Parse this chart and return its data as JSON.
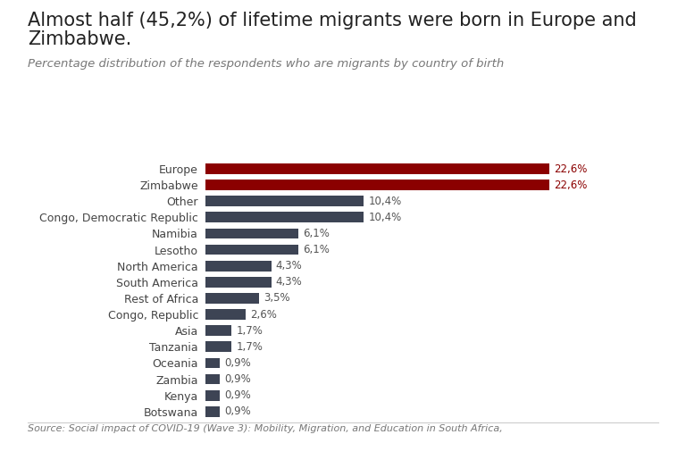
{
  "title_line1": "Almost half (45,2%) of lifetime migrants were born in Europe and",
  "title_line2": "Zimbabwe.",
  "subtitle": "Percentage distribution of the respondents who are migrants by country of birth",
  "source": "Source: Social impact of COVID-19 (Wave 3): Mobility, Migration, and Education in South Africa,",
  "categories": [
    "Europe",
    "Zimbabwe",
    "Other",
    "Congo, Democratic Republic",
    "Namibia",
    "Lesotho",
    "North America",
    "South America",
    "Rest of Africa",
    "Congo, Republic",
    "Asia",
    "Tanzania",
    "Oceania",
    "Zambia",
    "Kenya",
    "Botswana"
  ],
  "values": [
    22.6,
    22.6,
    10.4,
    10.4,
    6.1,
    6.1,
    4.3,
    4.3,
    3.5,
    2.6,
    1.7,
    1.7,
    0.9,
    0.9,
    0.9,
    0.9
  ],
  "labels": [
    "22,6%",
    "22,6%",
    "10,4%",
    "10,4%",
    "6,1%",
    "6,1%",
    "4,3%",
    "4,3%",
    "3,5%",
    "2,6%",
    "1,7%",
    "1,7%",
    "0,9%",
    "0,9%",
    "0,9%",
    "0,9%"
  ],
  "bar_colors": [
    "#8B0000",
    "#8B0000",
    "#3d4454",
    "#3d4454",
    "#3d4454",
    "#3d4454",
    "#3d4454",
    "#3d4454",
    "#3d4454",
    "#3d4454",
    "#3d4454",
    "#3d4454",
    "#3d4454",
    "#3d4454",
    "#3d4454",
    "#3d4454"
  ],
  "highlight_label_color": "#8B0000",
  "normal_label_color": "#555555",
  "background_color": "#ffffff",
  "title_fontsize": 15,
  "subtitle_fontsize": 9.5,
  "label_fontsize": 8.5,
  "tick_fontsize": 9,
  "source_fontsize": 8,
  "xlim": [
    0,
    28
  ]
}
